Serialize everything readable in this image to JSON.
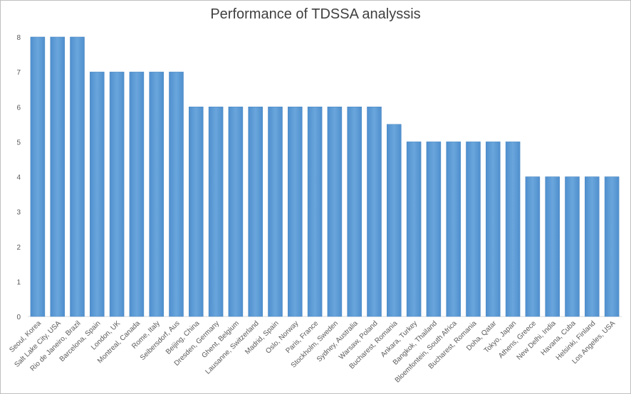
{
  "chart_data": {
    "type": "bar",
    "title": "Performance of TDSSA analyssis",
    "xlabel": "",
    "ylabel": "",
    "ylim": [
      0,
      8
    ],
    "yticks": [
      "0",
      "1",
      "2",
      "3",
      "4",
      "5",
      "6",
      "7",
      "8"
    ],
    "grid": false,
    "legend": "none",
    "bar_color": "#5b9bd5",
    "categories": [
      "Seoul, Korea",
      "Salt Lake City, USA",
      "Rio de Janeiro, Brazil",
      "Barcelona, Spain",
      "London, UK",
      "Montreal, Canada",
      "Rome, Italy",
      "Seibersdorf, Aus",
      "Beijing, China",
      "Dresden, Germany",
      "Ghent, Belgium",
      "Lausanne, Switzerland",
      "Madrid, Spain",
      "Oslo, Norway",
      "Paris, France",
      "Stockholm, Sweden",
      "Sydney, Australia",
      "Warsaw, Poland",
      "Bucharest, Romania",
      "Ankara, Turkey",
      "Bangkok, Thailand",
      "Bloemfontein, South Africa",
      "Bucharest, Romania",
      "Doha, Qatar",
      "Tokyo, Japan",
      "Athens, Greece",
      "New Delhi, India",
      "Havana, Cuba",
      "Helsinki, Finland",
      "Los Angeles, USA"
    ],
    "values": [
      8,
      8,
      8,
      7,
      7,
      7,
      7,
      7,
      6,
      6,
      6,
      6,
      6,
      6,
      6,
      6,
      6,
      6,
      5.5,
      5,
      5,
      5,
      5,
      5,
      5,
      4,
      4,
      4,
      4,
      4
    ]
  }
}
